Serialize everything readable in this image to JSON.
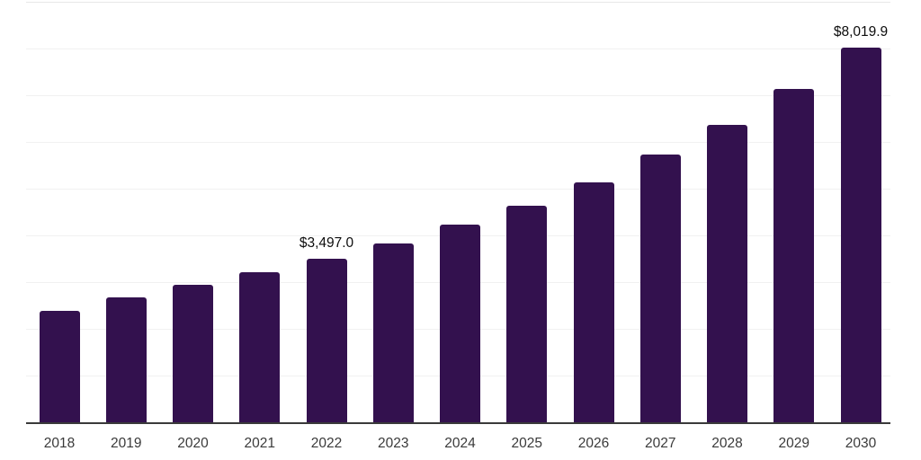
{
  "chart_data": {
    "type": "bar",
    "title": "",
    "xlabel": "",
    "ylabel": "",
    "categories": [
      "2018",
      "2019",
      "2020",
      "2021",
      "2022",
      "2023",
      "2024",
      "2025",
      "2026",
      "2027",
      "2028",
      "2029",
      "2030"
    ],
    "values": [
      2390,
      2670,
      2950,
      3220,
      3497,
      3840,
      4245,
      4650,
      5150,
      5730,
      6370,
      7145,
      8019.9
    ],
    "data_labels": {
      "2022": "$3,497.0",
      "2030": "$8,019.9"
    },
    "ylim": [
      0,
      9000
    ],
    "gridline_step": 1000,
    "grid": "horizontal",
    "legend": "none",
    "y_tick_labels_visible": false,
    "colors": {
      "bar": "#33114E",
      "axis_line": "#3a3a3a",
      "gridline": "#f1f1f1",
      "top_gridline": "#e8e8e8",
      "x_label": "#3a3a3a",
      "value_label": "#0d0d0d",
      "background": "#ffffff"
    }
  }
}
